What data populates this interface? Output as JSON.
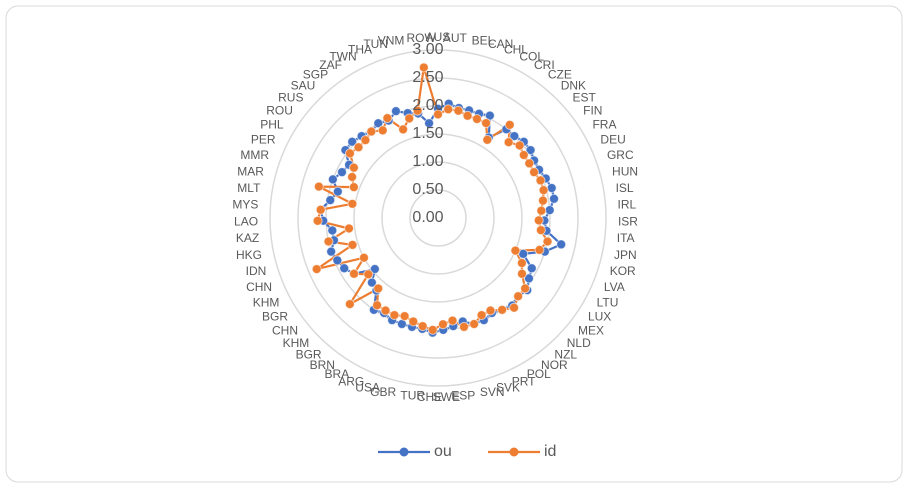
{
  "chart_data": {
    "type": "radar",
    "categories": [
      "AUS",
      "AUT",
      "BEL",
      "CAN",
      "CHL",
      "COL",
      "CRI",
      "CZE",
      "DNK",
      "EST",
      "FIN",
      "FRA",
      "DEU",
      "GRC",
      "HUN",
      "ISL",
      "IRL",
      "ISR",
      "ITA",
      "JPN",
      "KOR",
      "LVA",
      "LTU",
      "LUX",
      "MEX",
      "NLD",
      "NZL",
      "NOR",
      "POL",
      "PRT",
      "SVK",
      "SVN",
      "ESP",
      "SWE",
      "CHE",
      "TUR",
      "GBR",
      "USA",
      "ARG",
      "BRA",
      "BRN",
      "BGR",
      "KHM",
      "CHN",
      "BGR",
      "KHM",
      "CHN",
      "IDN",
      "HKG",
      "KAZ",
      "LAO",
      "MYS",
      "MLT",
      "MAR",
      "MMR",
      "PER",
      "PHL",
      "ROU",
      "RUS",
      "SAU",
      "SGP",
      "ZAF",
      "TWN",
      "THA",
      "TUN",
      "VNM",
      "ROW"
    ],
    "series": [
      {
        "name": "ou",
        "color": "#4472c4",
        "values": [
          1.95,
          2.05,
          2.0,
          2.0,
          2.0,
          2.05,
          1.7,
          2.0,
          2.0,
          2.05,
          2.05,
          2.0,
          2.0,
          2.05,
          2.1,
          2.1,
          2.0,
          1.9,
          1.95,
          2.25,
          2.0,
          1.65,
          1.9,
          1.95,
          2.05,
          2.0,
          2.05,
          2.0,
          1.95,
          2.0,
          2.0,
          1.9,
          1.95,
          2.0,
          2.05,
          2.0,
          2.0,
          2.0,
          2.0,
          1.95,
          2.0,
          1.7,
          1.65,
          1.45,
          1.8,
          1.9,
          1.95,
          2.0,
          1.9,
          1.9,
          2.05,
          2.1,
          1.95,
          1.85,
          2.0,
          1.9,
          1.85,
          2.05,
          2.05,
          2.0,
          1.95,
          2.0,
          1.95,
          2.05,
          1.95,
          1.9,
          1.7
        ]
      },
      {
        "name": "id",
        "color": "#ed7d31",
        "values": [
          1.85,
          1.95,
          1.95,
          1.9,
          1.9,
          1.9,
          1.65,
          2.1,
          1.85,
          1.95,
          1.9,
          1.9,
          1.9,
          1.95,
          1.95,
          1.9,
          1.85,
          1.8,
          1.85,
          2.0,
          1.9,
          1.5,
          1.7,
          1.8,
          2.0,
          2.0,
          2.1,
          2.0,
          1.9,
          1.9,
          2.0,
          2.0,
          1.85,
          1.9,
          2.0,
          1.95,
          1.9,
          1.85,
          1.9,
          1.9,
          1.9,
          1.65,
          2.2,
          1.6,
          1.8,
          1.5,
          2.35,
          1.6,
          2.0,
          1.6,
          2.15,
          2.1,
          1.55,
          2.2,
          1.6,
          1.7,
          1.75,
          1.95,
          1.9,
          1.9,
          1.95,
          1.85,
          2.0,
          1.7,
          1.85,
          1.95,
          2.7
        ]
      }
    ],
    "rlim": [
      0,
      3
    ],
    "rticks": [
      {
        "value": 0,
        "label": "0.00"
      },
      {
        "value": 0.5,
        "label": "0.50"
      },
      {
        "value": 1,
        "label": "1.00"
      },
      {
        "value": 1.5,
        "label": "1.50"
      },
      {
        "value": 2,
        "label": "2.00"
      },
      {
        "value": 2.5,
        "label": "2.50"
      },
      {
        "value": 3,
        "label": "3.00"
      }
    ],
    "grid": true,
    "legend": "bottom"
  }
}
